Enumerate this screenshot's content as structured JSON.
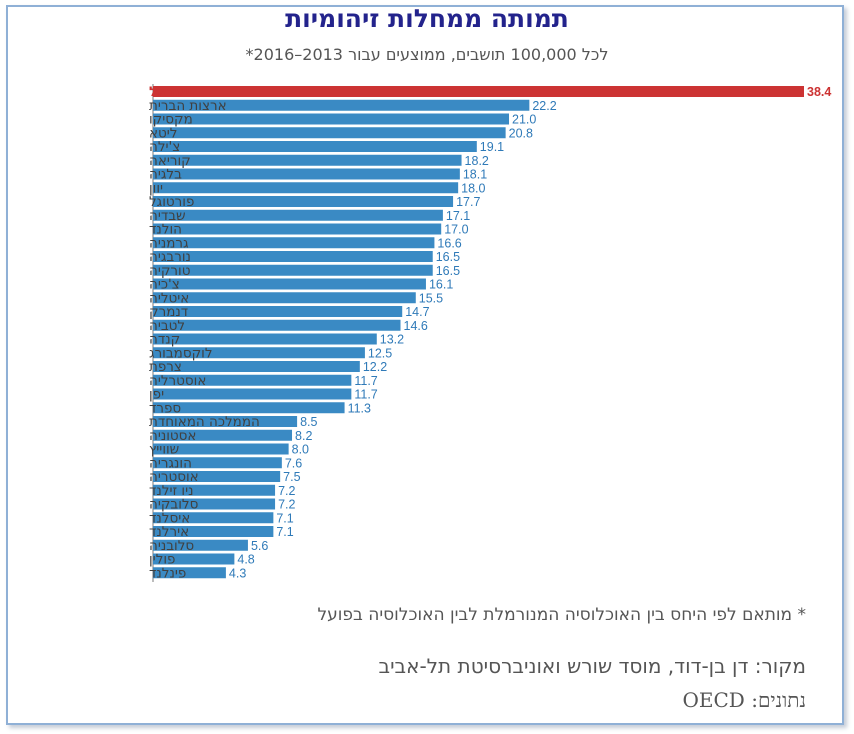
{
  "header": {
    "title": "תמותה ממחלות זיהומיות",
    "subtitle": "לכל 100,000 תושבים, ממוצעים עבור 2013–2016*"
  },
  "footer": {
    "footnote": "* מותאם לפי היחס בין האוכלוסיה המנורמלת לבין האוכלוסיה בפועל",
    "source": "מקור: דן בן-דוד, מוסד שורש ואוניברסיטת תל-אביב",
    "data": "נתונים: OECD"
  },
  "colors": {
    "highlight": "#cc3333",
    "bar": "#3a8ac4",
    "title": "#23238c"
  },
  "chart_data": {
    "type": "bar",
    "orientation": "horizontal",
    "highlight_index": 0,
    "xlim": [
      0,
      38.4
    ],
    "grid": false,
    "categories": [
      "ישראל",
      "ארצות הברית",
      "מקסיקו",
      "ליטא",
      "צ'ילה",
      "קוריאה",
      "בלגיה",
      "יוון",
      "פורטוגל",
      "שבדיה",
      "הולנד",
      "גרמניה",
      "נורבגיה",
      "טורקיה",
      "צ'כיה",
      "איטליה",
      "דנמרק",
      "לטביה",
      "קנדה",
      "לוקסמבורג",
      "צרפת",
      "אוסטרליה",
      "יפן",
      "ספרד",
      "הממלכה המאוחדת",
      "אסטוניה",
      "שווייץ",
      "הונגריה",
      "אוסטריה",
      "ניו זילנד",
      "סלובקיה",
      "איסלנד",
      "אירלנד",
      "סלובניה",
      "פולין",
      "פינלנד"
    ],
    "values": [
      38.4,
      22.2,
      21.0,
      20.8,
      19.1,
      18.2,
      18.1,
      18.0,
      17.7,
      17.1,
      17.0,
      16.6,
      16.5,
      16.5,
      16.1,
      15.5,
      14.7,
      14.6,
      13.2,
      12.5,
      12.2,
      11.7,
      11.7,
      11.3,
      8.5,
      8.2,
      8.0,
      7.6,
      7.5,
      7.2,
      7.2,
      7.1,
      7.1,
      5.6,
      4.8,
      4.3
    ],
    "value_labels": [
      "38.4",
      "22.2",
      "21.0",
      "20.8",
      "19.1",
      "18.2",
      "18.1",
      "18.0",
      "17.7",
      "17.1",
      "17.0",
      "16.6",
      "16.5",
      "16.5",
      "16.1",
      "15.5",
      "14.7",
      "14.6",
      "13.2",
      "12.5",
      "12.2",
      "11.7",
      "11.7",
      "11.3",
      "8.5",
      "8.2",
      "8.0",
      "7.6",
      "7.5",
      "7.2",
      "7.2",
      "7.1",
      "7.1",
      "5.6",
      "4.8",
      "4.3"
    ]
  }
}
